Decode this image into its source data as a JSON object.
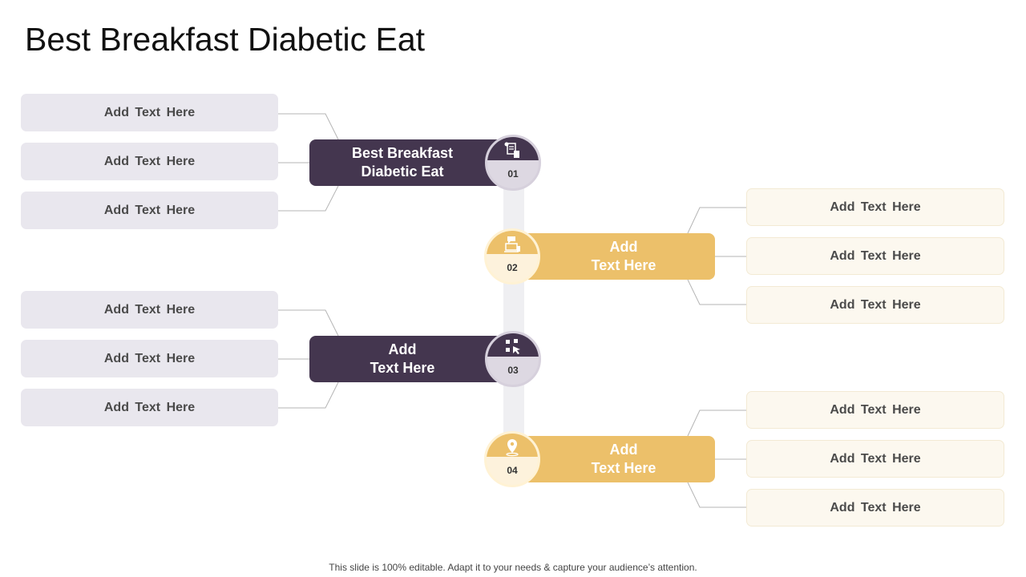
{
  "title": "Best Breakfast Diabetic Eat",
  "steps": [
    {
      "number": "01",
      "label_line1": "Best Breakfast",
      "label_line2": "Diabetic Eat",
      "icon": "document-chart-icon",
      "items": [
        "Add  Text Here",
        "Add  Text Here",
        "Add  Text Here"
      ]
    },
    {
      "number": "02",
      "label_line1": "Add",
      "label_line2": "Text Here",
      "icon": "laptop-chat-icon",
      "items": [
        "Add  Text Here",
        "Add  Text Here",
        "Add  Text Here"
      ]
    },
    {
      "number": "03",
      "label_line1": "Add",
      "label_line2": "Text Here",
      "icon": "pointer-grid-icon",
      "items": [
        "Add  Text Here",
        "Add  Text Here",
        "Add  Text Here"
      ]
    },
    {
      "number": "04",
      "label_line1": "Add",
      "label_line2": "Text Here",
      "icon": "location-pin-icon",
      "items": [
        "Add  Text Here",
        "Add  Text Here",
        "Add  Text Here"
      ]
    }
  ],
  "colors": {
    "dark": "#44364f",
    "gold": "#ecc06a",
    "light_purple": "#e9e7ee",
    "light_cream": "#fcf8ef"
  },
  "footer": "This slide is 100% editable. Adapt it to your needs & capture your audience’s attention."
}
